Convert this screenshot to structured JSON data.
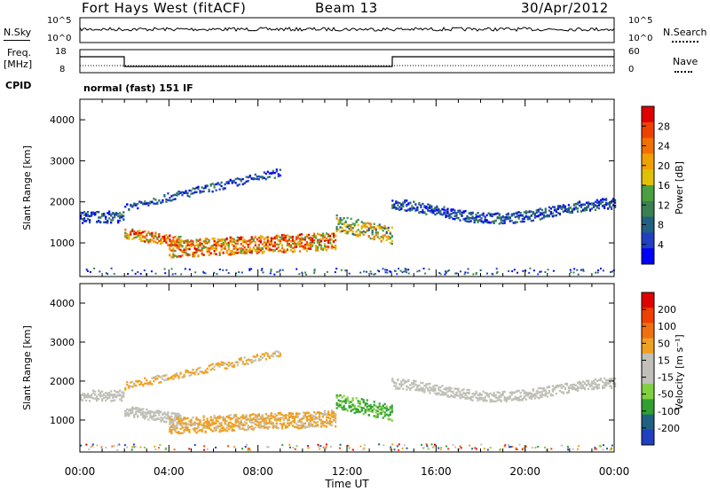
{
  "header": {
    "title": "Fort Hays West (fitACF)",
    "beam": "Beam 13",
    "date": "30/Apr/2012"
  },
  "noise_panel": {
    "left_label": "N.Sky",
    "right_label": "N.Search",
    "ticks_left": [
      "10^5",
      "10^0"
    ],
    "ticks_right": [
      "10^5",
      "10^0"
    ]
  },
  "freq_panel": {
    "left_label_1": "Freq.",
    "left_label_2": "[MHz]",
    "ticks_left": [
      "18",
      "8"
    ],
    "right_label": "Nave",
    "ticks_right": [
      "60",
      "0"
    ],
    "cpid_label": "CPID",
    "cpid_text": "normal (fast) 151 IF"
  },
  "chart_data": [
    {
      "type": "heatmap",
      "name": "power",
      "ylabel": "Slant Range [km]",
      "xlabel": "Time UT",
      "x_ticks": [
        "00:00",
        "04:00",
        "08:00",
        "12:00",
        "16:00",
        "20:00",
        "00:00"
      ],
      "x_range_hours": [
        0,
        24
      ],
      "ylim": [
        180,
        4500
      ],
      "y_ticks": [
        1000,
        2000,
        3000,
        4000
      ],
      "colorbar": {
        "label": "Power [dB]",
        "ticks": [
          "4",
          "8",
          "12",
          "16",
          "20",
          "24",
          "28"
        ],
        "colors": [
          "#0000ff",
          "#2040c0",
          "#206080",
          "#3a8050",
          "#4aa040",
          "#e0c000",
          "#f0a000",
          "#f07000",
          "#f04000",
          "#e00000"
        ]
      }
    },
    {
      "type": "heatmap",
      "name": "velocity",
      "ylabel": "Slant Range [km]",
      "xlabel": "Time UT",
      "x_ticks": [
        "00:00",
        "04:00",
        "08:00",
        "12:00",
        "16:00",
        "20:00",
        "00:00"
      ],
      "x_range_hours": [
        0,
        24
      ],
      "ylim": [
        180,
        4500
      ],
      "y_ticks": [
        1000,
        2000,
        3000,
        4000
      ],
      "colorbar": {
        "label": "Velocity [m s⁻¹]",
        "ticks": [
          "200",
          "100",
          "50",
          "15",
          "-15",
          "-50",
          "-100",
          "-200"
        ],
        "colors": [
          "#2040c0",
          "#206080",
          "#30a030",
          "#80d040",
          "#c0c0b8",
          "#c0c0b8",
          "#f0a020",
          "#f07010",
          "#f04000",
          "#e00000"
        ]
      }
    }
  ],
  "axis": {
    "xlabel": "Time UT"
  }
}
